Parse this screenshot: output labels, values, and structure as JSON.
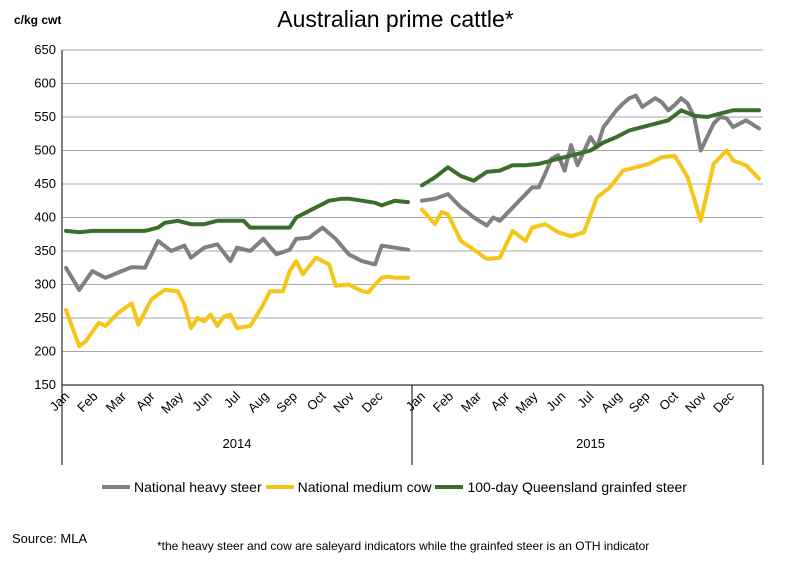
{
  "chart_data": {
    "type": "line",
    "title": "Australian prime cattle*",
    "ylabel": "c/kg cwt",
    "ylim": [
      150,
      650
    ],
    "yticks": [
      150,
      200,
      250,
      300,
      350,
      400,
      450,
      500,
      550,
      600,
      650
    ],
    "grid": true,
    "legend": "bottom",
    "years": [
      {
        "label": "2014",
        "months": [
          "Jan",
          "Feb",
          "Mar",
          "Apr",
          "May",
          "Jun",
          "Jul",
          "Aug",
          "Sep",
          "Oct",
          "Nov",
          "Dec"
        ]
      },
      {
        "label": "2015",
        "months": [
          "Jan",
          "Feb",
          "Mar",
          "Apr",
          "May",
          "Jun",
          "Jul",
          "Aug",
          "Sep",
          "Oct",
          "Nov",
          "Dec"
        ]
      }
    ],
    "x_note": "x = week index (0-51 per year, ~52 weeks)",
    "series": [
      {
        "name": "National heavy steer",
        "color": "#808080",
        "segments": [
          {
            "year": "2014",
            "x": [
              0,
              2,
              4,
              6,
              8,
              10,
              12,
              14,
              16,
              18,
              19,
              21,
              23,
              25,
              26,
              28,
              30,
              32,
              34,
              35,
              37,
              39,
              41,
              43,
              45,
              47,
              48,
              50,
              52
            ],
            "y": [
              325,
              292,
              320,
              310,
              318,
              326,
              325,
              365,
              350,
              358,
              340,
              355,
              360,
              335,
              355,
              350,
              368,
              345,
              352,
              368,
              370,
              385,
              368,
              345,
              335,
              330,
              358,
              355,
              352
            ]
          },
          {
            "year": "2015",
            "x": [
              0,
              2,
              4,
              6,
              7,
              8,
              10,
              11,
              12,
              13,
              15,
              17,
              18,
              19,
              20,
              21,
              22,
              23,
              24,
              26,
              27,
              28,
              30,
              31,
              32,
              33,
              34,
              36,
              37,
              38,
              39,
              40,
              41,
              42,
              43,
              45,
              46,
              47,
              48,
              49,
              50,
              52
            ],
            "y": [
              425,
              428,
              435,
              415,
              408,
              400,
              388,
              400,
              395,
              405,
              425,
              445,
              445,
              465,
              488,
              493,
              470,
              508,
              478,
              520,
              505,
              535,
              560,
              570,
              578,
              582,
              565,
              578,
              572,
              560,
              568,
              578,
              570,
              550,
              500,
              540,
              550,
              548,
              535,
              540,
              545,
              533
            ]
          }
        ]
      },
      {
        "name": "National medium cow",
        "color": "#F5C518",
        "segments": [
          {
            "year": "2014",
            "x": [
              0,
              2,
              3,
              5,
              6,
              8,
              10,
              11,
              13,
              15,
              17,
              18,
              19,
              20,
              21,
              22,
              23,
              24,
              25,
              26,
              28,
              30,
              31,
              33,
              34,
              35,
              36,
              38,
              40,
              41,
              43,
              45,
              46,
              47,
              48,
              49,
              50,
              52
            ],
            "y": [
              262,
              208,
              215,
              243,
              238,
              258,
              272,
              240,
              278,
              292,
              290,
              270,
              235,
              250,
              245,
              255,
              238,
              252,
              255,
              235,
              238,
              270,
              290,
              290,
              320,
              335,
              315,
              340,
              330,
              298,
              300,
              290,
              288,
              300,
              310,
              312,
              310,
              310
            ]
          },
          {
            "year": "2015",
            "x": [
              0,
              2,
              3,
              4,
              6,
              8,
              10,
              12,
              14,
              16,
              17,
              19,
              21,
              23,
              25,
              27,
              29,
              31,
              33,
              35,
              37,
              39,
              41,
              43,
              45,
              47,
              48,
              50,
              52
            ],
            "y": [
              412,
              390,
              408,
              405,
              365,
              352,
              338,
              340,
              380,
              365,
              385,
              390,
              378,
              372,
              378,
              430,
              445,
              470,
              475,
              480,
              490,
              492,
              460,
              395,
              480,
              500,
              485,
              478,
              458
            ]
          }
        ]
      },
      {
        "name": "100-day Queensland grainfed steer",
        "color": "#3B6E2A",
        "segments": [
          {
            "year": "2014",
            "x": [
              0,
              2,
              4,
              6,
              8,
              10,
              12,
              14,
              15,
              17,
              19,
              21,
              23,
              25,
              27,
              28,
              30,
              32,
              34,
              35,
              37,
              39,
              40,
              42,
              43,
              45,
              47,
              48,
              50,
              52
            ],
            "y": [
              380,
              378,
              380,
              380,
              380,
              380,
              380,
              385,
              392,
              395,
              390,
              390,
              395,
              395,
              395,
              385,
              385,
              385,
              385,
              400,
              410,
              420,
              425,
              428,
              428,
              425,
              422,
              418,
              425,
              423
            ]
          },
          {
            "year": "2015",
            "x": [
              0,
              2,
              4,
              6,
              8,
              10,
              12,
              14,
              16,
              18,
              20,
              22,
              24,
              26,
              28,
              30,
              32,
              34,
              36,
              38,
              40,
              42,
              44,
              46,
              48,
              50,
              52
            ],
            "y": [
              448,
              460,
              475,
              462,
              455,
              468,
              470,
              478,
              478,
              480,
              485,
              490,
              495,
              500,
              512,
              520,
              530,
              535,
              540,
              545,
              560,
              552,
              550,
              555,
              560,
              560,
              560
            ]
          }
        ]
      }
    ]
  },
  "source": "Source: MLA",
  "footnote": "*the heavy steer and cow are saleyard indicators while the grainfed steer is an OTH indicator"
}
